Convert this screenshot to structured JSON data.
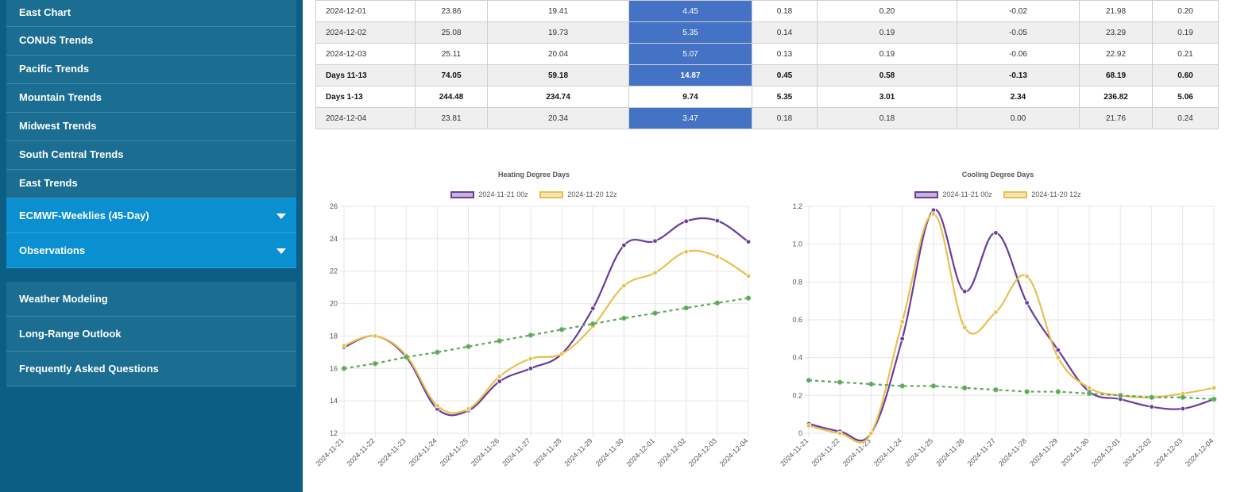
{
  "sidebar": {
    "top_items": [
      {
        "label": "East Chart"
      },
      {
        "label": "CONUS Trends"
      },
      {
        "label": "Pacific Trends"
      },
      {
        "label": "Mountain Trends"
      },
      {
        "label": "Midwest Trends"
      },
      {
        "label": "South Central Trends"
      },
      {
        "label": "East Trends"
      }
    ],
    "expand_items": [
      {
        "label": "ECMWF-Weeklies (45-Day)",
        "icon": "chevron-down-icon"
      },
      {
        "label": "Observations",
        "icon": "chevron-down-icon"
      }
    ],
    "bottom_items": [
      {
        "label": "Weather Modeling"
      },
      {
        "label": "Long-Range Outlook"
      },
      {
        "label": "Frequently Asked Questions"
      }
    ]
  },
  "colors": {
    "sidebar_bg": "#0d5e84",
    "nav_item": "#1b6d91",
    "nav_active": "#0a8fd0",
    "highlight_cell": "#4472c4",
    "series_a": "#6a3d9a",
    "series_b": "#e8c04e",
    "series_normal": "#5aa85a"
  },
  "table": {
    "rows": [
      {
        "cells": [
          "2024-12-01",
          "23.86",
          "19.41",
          "4.45",
          "0.18",
          "0.20",
          "-0.02",
          "21.98",
          "0.20"
        ],
        "shade": false,
        "bold": false
      },
      {
        "cells": [
          "2024-12-02",
          "25.08",
          "19.73",
          "5.35",
          "0.14",
          "0.19",
          "-0.05",
          "23.29",
          "0.19"
        ],
        "shade": true,
        "bold": false
      },
      {
        "cells": [
          "2024-12-03",
          "25.11",
          "20.04",
          "5.07",
          "0.13",
          "0.19",
          "-0.06",
          "22.92",
          "0.21"
        ],
        "shade": false,
        "bold": false
      },
      {
        "cells": [
          "Days 11-13",
          "74.05",
          "59.18",
          "14.87",
          "0.45",
          "0.58",
          "-0.13",
          "68.19",
          "0.60"
        ],
        "shade": true,
        "bold": true
      },
      {
        "cells": [
          "Days 1-13",
          "244.48",
          "234.74",
          "9.74",
          "5.35",
          "3.01",
          "2.34",
          "236.82",
          "5.06"
        ],
        "shade": false,
        "bold": true,
        "no_highlight": true
      },
      {
        "cells": [
          "2024-12-04",
          "23.81",
          "20.34",
          "3.47",
          "0.18",
          "0.18",
          "0.00",
          "21.76",
          "0.24"
        ],
        "shade": true,
        "bold": false
      }
    ]
  },
  "chart_data": [
    {
      "type": "line",
      "title": "Heating Degree Days",
      "x": [
        "2024-11-21",
        "2024-11-22",
        "2024-11-23",
        "2024-11-24",
        "2024-11-25",
        "2024-11-26",
        "2024-11-27",
        "2024-11-28",
        "2024-11-29",
        "2024-11-30",
        "2024-12-01",
        "2024-12-02",
        "2024-12-03",
        "2024-12-04"
      ],
      "ylim": [
        12,
        26
      ],
      "yticks": [
        12,
        14,
        16,
        18,
        20,
        22,
        24,
        26
      ],
      "grid": true,
      "legend": "top-center",
      "series": [
        {
          "name": "2024-11-21 00z",
          "color": "#6a3d9a",
          "values": [
            17.3,
            18.0,
            16.7,
            13.5,
            13.4,
            15.2,
            16.0,
            16.9,
            19.7,
            23.6,
            23.86,
            25.08,
            25.11,
            23.81
          ]
        },
        {
          "name": "2024-11-20 12z",
          "color": "#e8c04e",
          "values": [
            17.4,
            18.0,
            16.8,
            13.7,
            13.5,
            15.5,
            16.6,
            16.9,
            18.6,
            21.1,
            21.9,
            23.2,
            22.9,
            21.7
          ]
        },
        {
          "name": "",
          "color": "#5aa85a",
          "dashed": true,
          "values": [
            16.0,
            16.3,
            16.7,
            17.0,
            17.35,
            17.7,
            18.05,
            18.4,
            18.75,
            19.1,
            19.41,
            19.73,
            20.04,
            20.34
          ]
        }
      ]
    },
    {
      "type": "line",
      "title": "Cooling Degree Days",
      "x": [
        "2024-11-21",
        "2024-11-22",
        "2024-11-23",
        "2024-11-24",
        "2024-11-25",
        "2024-11-26",
        "2024-11-27",
        "2024-11-28",
        "2024-11-29",
        "2024-11-30",
        "2024-12-01",
        "2024-12-02",
        "2024-12-03",
        "2024-12-04"
      ],
      "ylim": [
        0,
        1.2
      ],
      "yticks": [
        0,
        0.2,
        0.4,
        0.6,
        0.8,
        1.0,
        1.2
      ],
      "ytick_labels": [
        "0",
        "0.2",
        "0.4",
        "0.6",
        "0.8",
        "1.0",
        "1.2"
      ],
      "grid": true,
      "legend": "top-center",
      "series": [
        {
          "name": "2024-11-21 00z",
          "color": "#6a3d9a",
          "values": [
            0.05,
            0.01,
            0.0,
            0.5,
            1.18,
            0.75,
            1.06,
            0.69,
            0.44,
            0.22,
            0.18,
            0.14,
            0.13,
            0.18
          ]
        },
        {
          "name": "2024-11-20 12z",
          "color": "#e8c04e",
          "values": [
            0.04,
            0.0,
            0.0,
            0.59,
            1.16,
            0.56,
            0.64,
            0.83,
            0.4,
            0.24,
            0.2,
            0.19,
            0.21,
            0.24
          ]
        },
        {
          "name": "",
          "color": "#5aa85a",
          "dashed": true,
          "values": [
            0.28,
            0.27,
            0.26,
            0.25,
            0.25,
            0.24,
            0.23,
            0.22,
            0.22,
            0.21,
            0.2,
            0.19,
            0.19,
            0.18
          ]
        }
      ]
    }
  ]
}
